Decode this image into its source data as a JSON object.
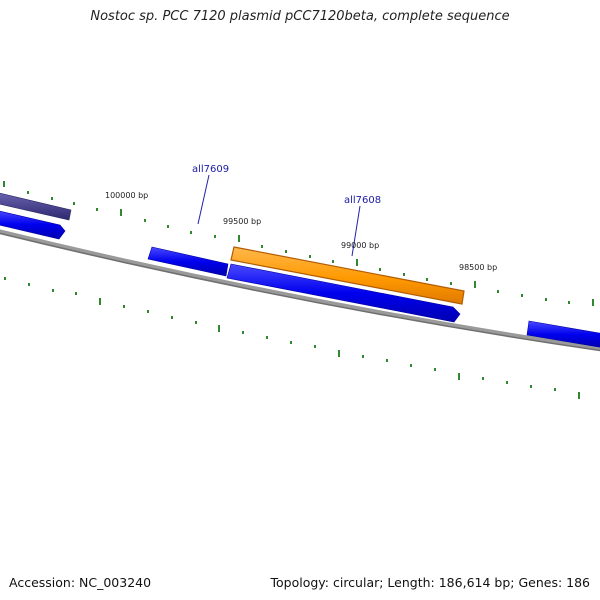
{
  "header": {
    "title": "Nostoc sp. PCC 7120 plasmid pCC7120beta, complete sequence"
  },
  "footer": {
    "accession": "Accession: NC_003240",
    "summary": "Topology: circular; Length: 186,614 bp; Genes: 186"
  },
  "position_labels": [
    "100000 bp",
    "99500 bp",
    "99000 bp",
    "98500 bp"
  ],
  "gene_labels": [
    "all7609",
    "all7608"
  ],
  "colors": {
    "backbone": "#808080",
    "gene_strand": "#0000ee",
    "highlighted_gene": "#ff9900",
    "highlighted_gene_edge": "#b35c00",
    "neighbor_gene": "#3f3a8a",
    "tick": "#1a7a1a",
    "label_line": "#2222aa"
  }
}
